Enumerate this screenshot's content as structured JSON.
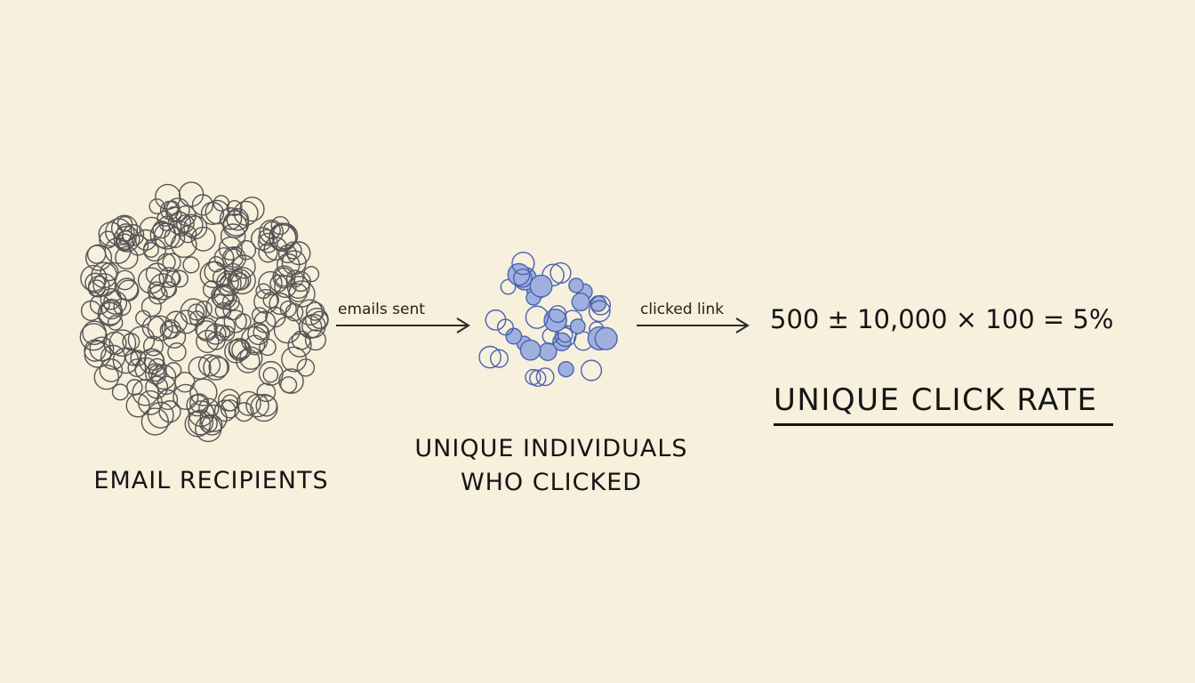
{
  "diagram": {
    "recipients_label": "EMAIL RECIPIENTS",
    "arrow1_label": "emails sent",
    "clickers_label_line1": "UNIQUE INDIVIDUALS",
    "clickers_label_line2": "WHO CLICKED",
    "arrow2_label": "clicked link",
    "formula": "500 ± 10,000 × 100 = 5%",
    "result_title": "UNIQUE CLICK RATE"
  },
  "colors": {
    "background": "#f6f0dc",
    "recipient_stroke": "#555555",
    "clicker_stroke": "#4a62b0",
    "clicker_fill": "#9fb0de",
    "ink": "#151515"
  }
}
